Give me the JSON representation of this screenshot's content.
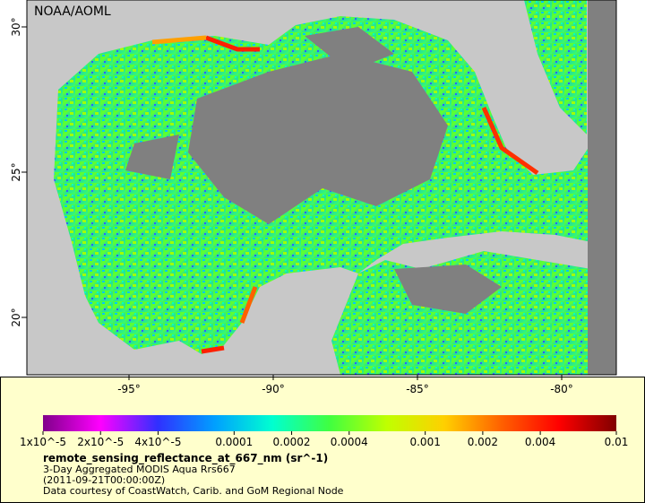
{
  "map": {
    "credit": "NOAA/AOML",
    "lat_ticks": [
      {
        "value": 30,
        "label": "30°"
      },
      {
        "value": 25,
        "label": "25°"
      },
      {
        "value": 20,
        "label": "20°"
      }
    ],
    "lon_ticks": [
      {
        "value": -95,
        "label": "-95°"
      },
      {
        "value": -90,
        "label": "-90°"
      },
      {
        "value": -85,
        "label": "-85°"
      },
      {
        "value": -80,
        "label": "-80°"
      }
    ]
  },
  "colorbar": {
    "scale": "log",
    "range": [
      1e-05,
      0.01
    ],
    "colors": [
      "#80008a",
      "#ff00ff",
      "#3030ff",
      "#00a0ff",
      "#00ffd0",
      "#40ff40",
      "#c0ff00",
      "#ffd000",
      "#ff6000",
      "#ff0000",
      "#800000"
    ],
    "ticks": [
      {
        "value": 1e-05,
        "label": "1x10^-5"
      },
      {
        "value": 2e-05,
        "label": "2x10^-5"
      },
      {
        "value": 4e-05,
        "label": "4x10^-5"
      },
      0.0001,
      0.0002,
      0.0004,
      0.001,
      0.002,
      0.004,
      0.01
    ]
  },
  "legend": {
    "title": "remote_sensing_reflectance_at_667_nm (sr^-1)",
    "lines": [
      "3-Day Aggregated MODIS Aqua Rrs667",
      "(2011-09-21T00:00:00Z)",
      "Data courtesy of CoastWatch, Carib. and GoM Regional Node"
    ]
  }
}
